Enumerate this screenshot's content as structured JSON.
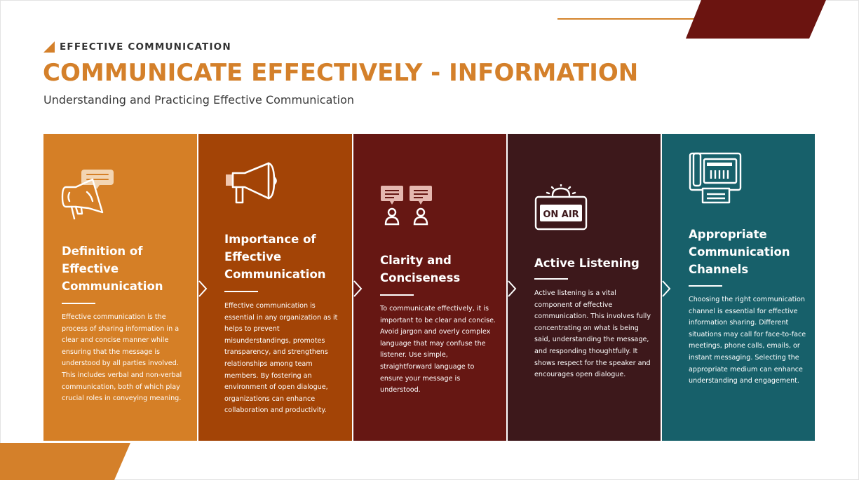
{
  "header": {
    "eyebrow": "EFFECTIVE COMMUNICATION",
    "title": "COMMUNICATE EFFECTIVELY - INFORMATION",
    "subtitle": "Understanding and Practicing Effective Communication"
  },
  "colors": {
    "accent_orange": "#d4802a",
    "dark_red": "#6b1410",
    "card_1": "#d57f26",
    "card_2": "#a34406",
    "card_3": "#661713",
    "card_4": "#3d181b",
    "card_5": "#17606a"
  },
  "cards": [
    {
      "icon": "megaphone-speech-icon",
      "title": "Definition of Effective Communication",
      "body": "Effective communication is the process of sharing information in a clear and concise manner while ensuring that the message is understood by all parties involved. This includes verbal and non-verbal communication, both of which play crucial roles in conveying meaning."
    },
    {
      "icon": "megaphone-icon",
      "title": "Importance of Effective Communication",
      "body": "Effective communication is essential in any organization as it helps to prevent misunderstandings, promotes transparency, and strengthens relationships among team members. By fostering an environment of open dialogue, organizations can enhance collaboration and productivity."
    },
    {
      "icon": "people-chat-icon",
      "title": "Clarity and Conciseness",
      "body": "To communicate effectively, it is important to be clear and concise. Avoid jargon and overly complex language that may confuse the listener. Use simple, straightforward language to ensure your message is understood."
    },
    {
      "icon": "on-air-sign-icon",
      "icon_text": "ON AIR",
      "title": "Active Listening",
      "body": "Active listening is a vital component of effective communication. This involves fully concentrating on what is being said, understanding the message, and responding thoughtfully. It shows respect for the speaker and encourages open dialogue."
    },
    {
      "icon": "fax-machine-icon",
      "title": "Appropriate Communication Channels",
      "body": "Choosing the right communication channel is essential for effective information sharing. Different situations may call for face-to-face meetings, phone calls, emails, or instant messaging. Selecting the appropriate medium can enhance understanding and engagement."
    }
  ]
}
